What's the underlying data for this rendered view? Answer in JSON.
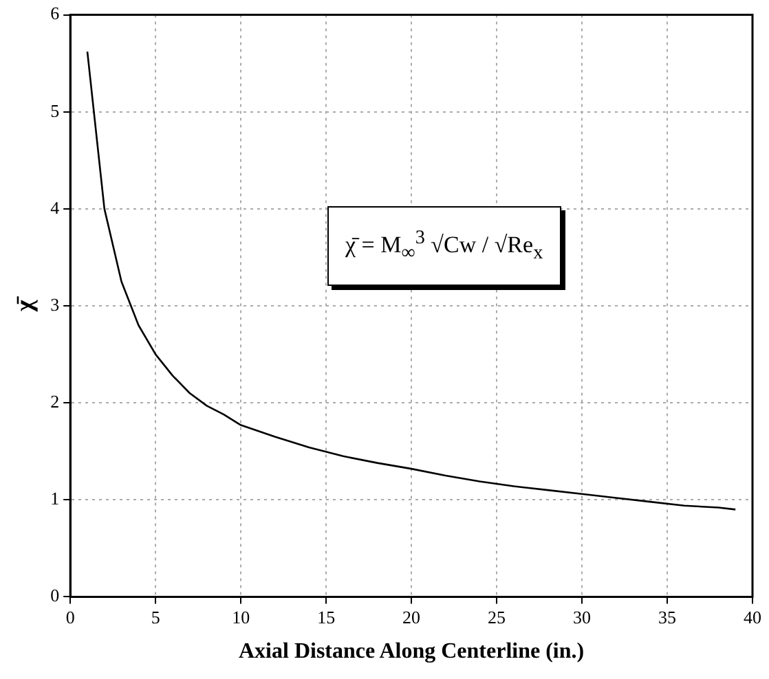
{
  "chart_data": {
    "type": "line",
    "xlabel": "Axial Distance Along Centerline (in.)",
    "ylabel": "χ̄",
    "x": [
      1,
      2,
      3,
      4,
      5,
      6,
      7,
      8,
      9,
      10,
      12,
      14,
      16,
      18,
      20,
      22,
      24,
      26,
      28,
      30,
      32,
      34,
      36,
      38,
      39
    ],
    "series": [
      {
        "color": "#000000",
        "values": [
          5.62,
          4.0,
          3.25,
          2.8,
          2.5,
          2.28,
          2.1,
          1.97,
          1.88,
          1.77,
          1.65,
          1.54,
          1.45,
          1.38,
          1.32,
          1.25,
          1.19,
          1.14,
          1.1,
          1.06,
          1.02,
          0.98,
          0.94,
          0.92,
          0.9
        ]
      }
    ],
    "xlim": [
      0,
      40
    ],
    "xticks": [
      0,
      5,
      10,
      15,
      20,
      25,
      30,
      35,
      40
    ],
    "ylim": [
      0,
      6
    ],
    "yticks": [
      0,
      1,
      2,
      3,
      4,
      5,
      6
    ],
    "grid": true,
    "legend": false,
    "marker": "none",
    "line_style": "solid",
    "annotations": [
      "χ̄ = M$_{∞}$$^{3}$ √Cw / √Re$_{x}$"
    ]
  }
}
